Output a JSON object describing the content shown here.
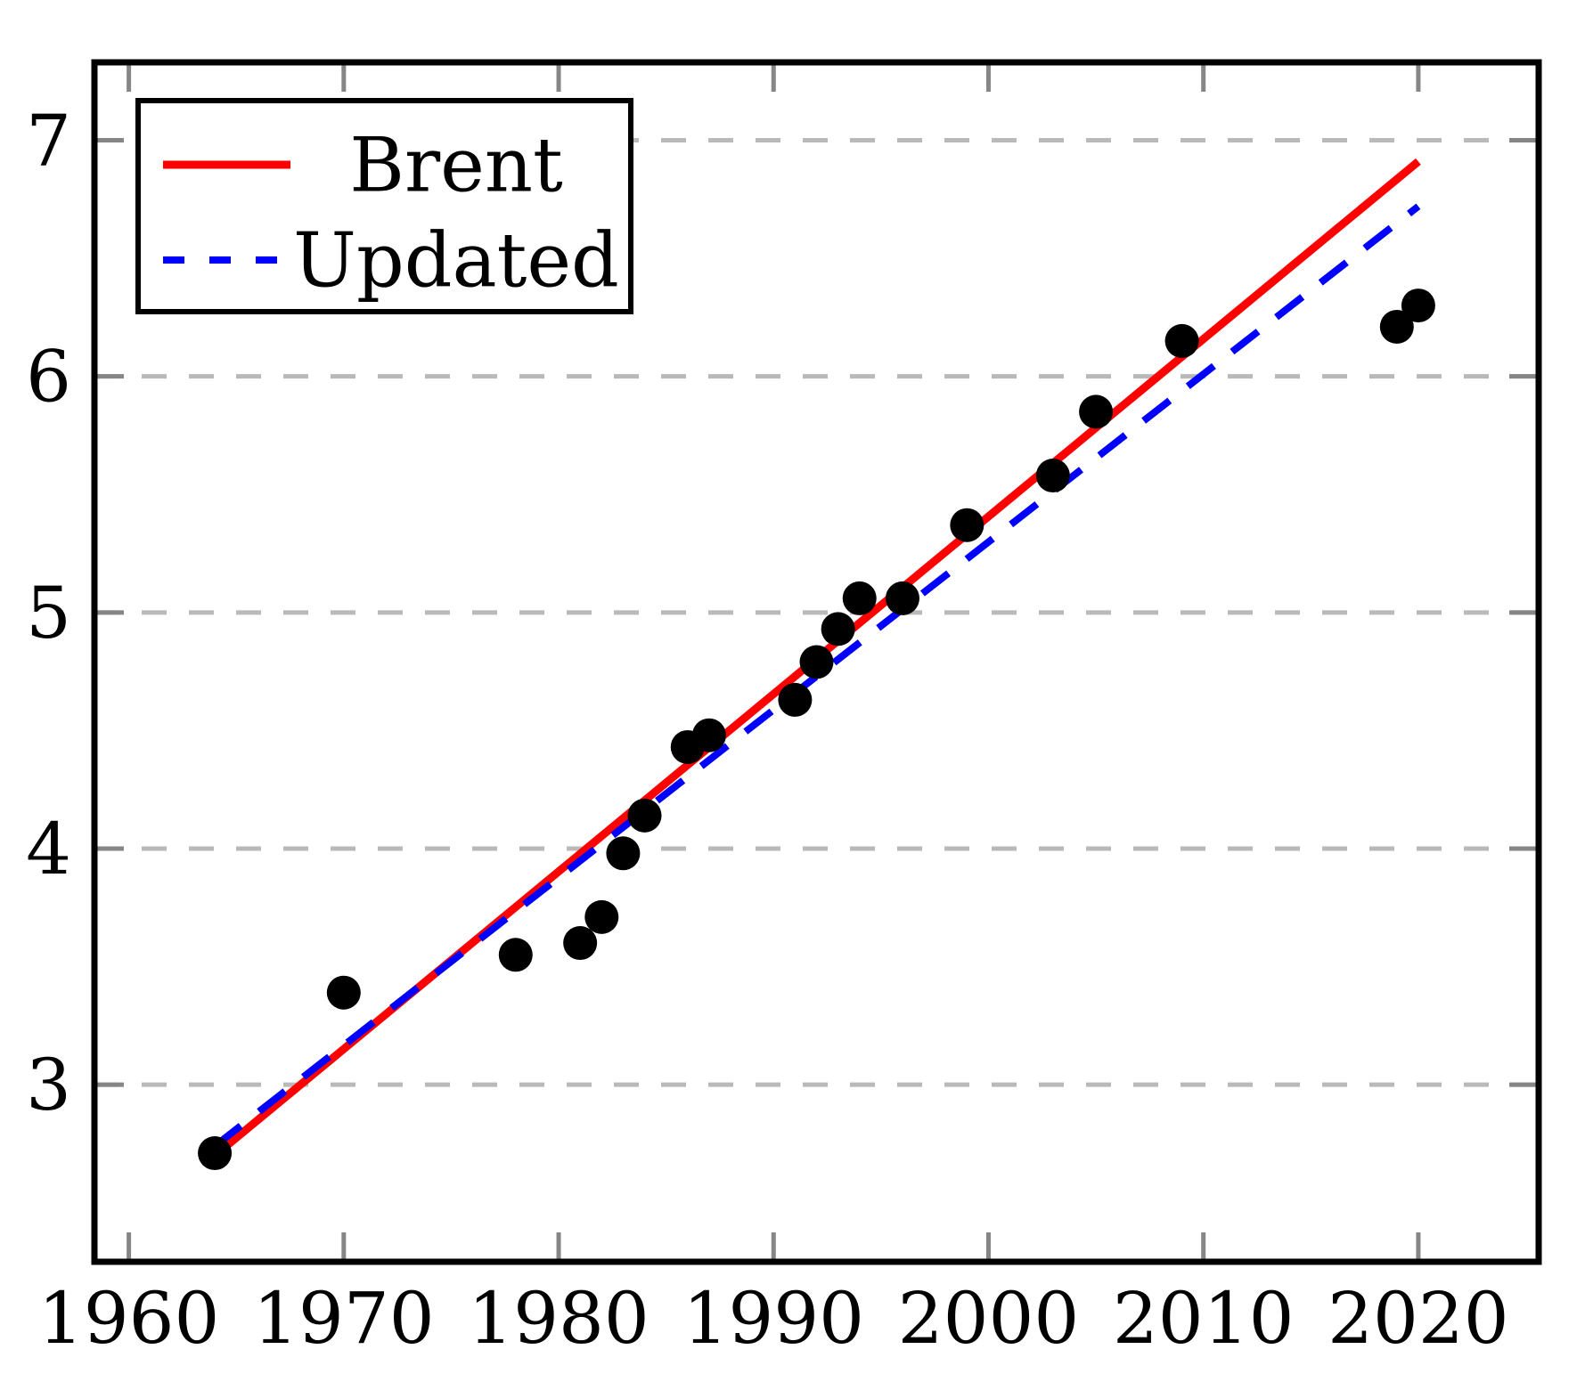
{
  "chart_data": {
    "type": "scatter",
    "title": "",
    "xlabel": "",
    "ylabel": "",
    "xlim": [
      1958.4,
      2025.6
    ],
    "ylim": [
      2.25,
      7.33
    ],
    "x_ticks": [
      1960,
      1970,
      1980,
      1990,
      2000,
      2010,
      2020
    ],
    "y_ticks": [
      3,
      4,
      5,
      6,
      7
    ],
    "grid": "horizontal-dashed-gray",
    "legend_position": "top-left",
    "points": [
      [
        1964,
        2.71
      ],
      [
        1970,
        3.39
      ],
      [
        1978,
        3.55
      ],
      [
        1981,
        3.6
      ],
      [
        1982,
        3.71
      ],
      [
        1983,
        3.98
      ],
      [
        1984,
        4.14
      ],
      [
        1986,
        4.43
      ],
      [
        1987,
        4.48
      ],
      [
        1991,
        4.63
      ],
      [
        1992,
        4.79
      ],
      [
        1993,
        4.93
      ],
      [
        1994,
        5.06
      ],
      [
        1996,
        5.06
      ],
      [
        1999,
        5.37
      ],
      [
        2003,
        5.58
      ],
      [
        2005,
        5.85
      ],
      [
        2009,
        6.15
      ],
      [
        2019,
        6.21
      ],
      [
        2020,
        6.3
      ]
    ],
    "lines": [
      {
        "name": "Brent",
        "style": "solid",
        "color": "#ff0000",
        "x": [
          1964,
          2020
        ],
        "y": [
          2.7,
          6.91
        ]
      },
      {
        "name": "Updated",
        "style": "dashed",
        "color": "#0000ff",
        "x": [
          1964,
          2020
        ],
        "y": [
          2.74,
          6.72
        ]
      }
    ],
    "colors": {
      "points": "#000000",
      "grid": "#b9b9b9",
      "ticks": "#868686",
      "border": "#000000",
      "background": "#ffffff"
    }
  }
}
